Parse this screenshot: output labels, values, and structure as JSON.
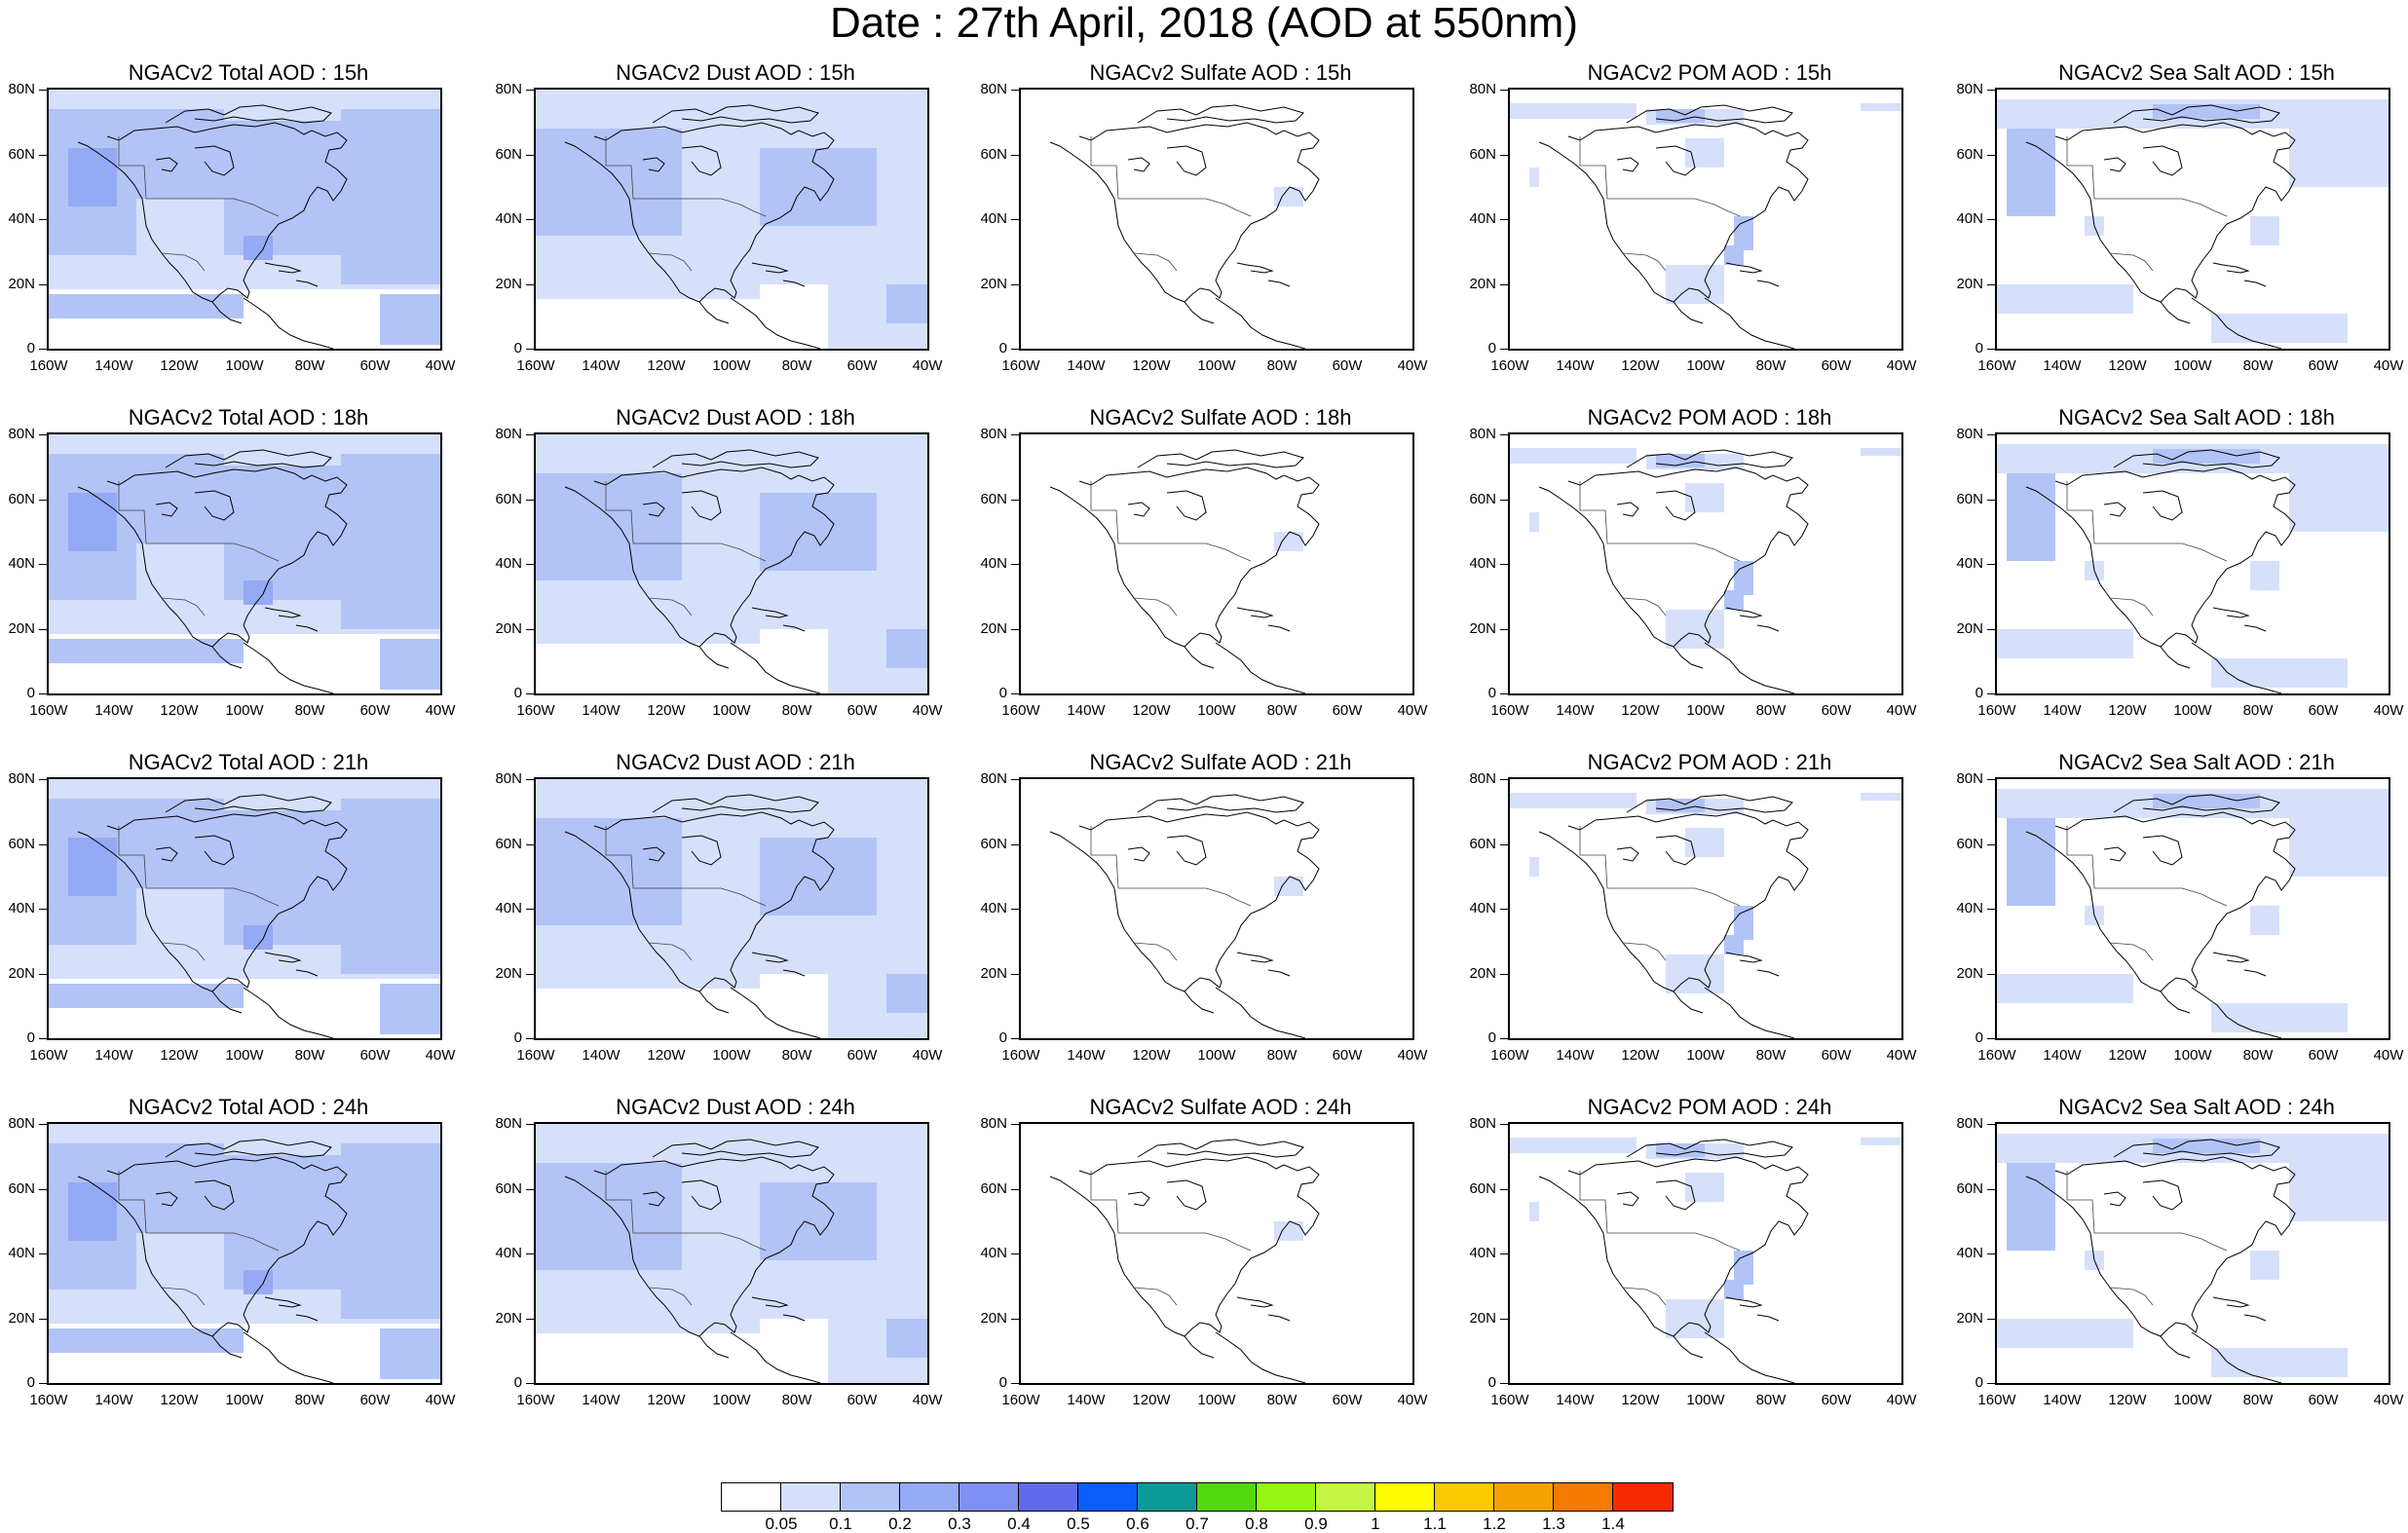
{
  "title": "Date : 27th April, 2018 (AOD at 550nm)",
  "y_ticks": [
    "80N",
    "60N",
    "40N",
    "20N",
    "0"
  ],
  "x_ticks": [
    "160W",
    "140W",
    "120W",
    "100W",
    "80W",
    "60W",
    "40W"
  ],
  "colorbar": {
    "labels": [
      "0.05",
      "0.1",
      "0.2",
      "0.3",
      "0.4",
      "0.5",
      "0.6",
      "0.7",
      "0.8",
      "0.9",
      "1",
      "1.1",
      "1.2",
      "1.3",
      "1.4"
    ],
    "colors": [
      "#ffffff",
      "#d6e0fb",
      "#b2c3f6",
      "#95aaf4",
      "#7f90f2",
      "#6169ec",
      "#0b5ef9",
      "#0c9a96",
      "#53d70e",
      "#95f711",
      "#c5f545",
      "#fffb00",
      "#fac800",
      "#f5a100",
      "#f57a00",
      "#f52a00"
    ]
  },
  "panels": [
    {
      "title": "NGACv2 Total AOD : 15h",
      "kind": "total"
    },
    {
      "title": "NGACv2 Dust AOD : 15h",
      "kind": "dust"
    },
    {
      "title": "NGACv2 Sulfate AOD : 15h",
      "kind": "sulfate"
    },
    {
      "title": "NGACv2 POM AOD : 15h",
      "kind": "pom"
    },
    {
      "title": "NGACv2 Sea Salt AOD : 15h",
      "kind": "seasalt"
    },
    {
      "title": "NGACv2 Total AOD : 18h",
      "kind": "total"
    },
    {
      "title": "NGACv2 Dust AOD : 18h",
      "kind": "dust"
    },
    {
      "title": "NGACv2 Sulfate AOD : 18h",
      "kind": "sulfate"
    },
    {
      "title": "NGACv2 POM AOD : 18h",
      "kind": "pom"
    },
    {
      "title": "NGACv2 Sea Salt AOD : 18h",
      "kind": "seasalt"
    },
    {
      "title": "NGACv2 Total AOD : 21h",
      "kind": "total"
    },
    {
      "title": "NGACv2 Dust AOD : 21h",
      "kind": "dust"
    },
    {
      "title": "NGACv2 Sulfate AOD : 21h",
      "kind": "sulfate"
    },
    {
      "title": "NGACv2 POM AOD : 21h",
      "kind": "pom"
    },
    {
      "title": "NGACv2 Sea Salt AOD : 21h",
      "kind": "seasalt"
    },
    {
      "title": "NGACv2 Total AOD : 24h",
      "kind": "total"
    },
    {
      "title": "NGACv2 Dust AOD : 24h",
      "kind": "dust"
    },
    {
      "title": "NGACv2 Sulfate AOD : 24h",
      "kind": "sulfate"
    },
    {
      "title": "NGACv2 POM AOD : 24h",
      "kind": "pom"
    },
    {
      "title": "NGACv2 Sea Salt  AOD : 24h",
      "kind": "seasalt"
    }
  ]
}
